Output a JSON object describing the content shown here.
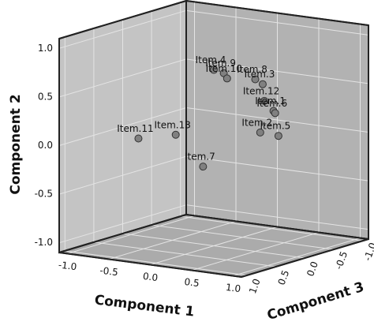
{
  "chart_data": {
    "type": "scatter3d",
    "xlabel": "Component 1",
    "ylabel": "Component 2",
    "zlabel": "Component 3",
    "xlim": [
      -1.1,
      1.1
    ],
    "ylim": [
      -1.1,
      1.1
    ],
    "zlim": [
      -1.1,
      1.1
    ],
    "xticks": [
      {
        "value": -1,
        "label": "-1.0"
      },
      {
        "value": -0.5,
        "label": "-0.5"
      },
      {
        "value": 0,
        "label": "0.0"
      },
      {
        "value": 0.5,
        "label": "0.5"
      },
      {
        "value": 1,
        "label": "1.0"
      }
    ],
    "yticks": [
      {
        "value": -1,
        "label": "-1.0"
      },
      {
        "value": -0.5,
        "label": "-0.5"
      },
      {
        "value": 0,
        "label": "0.0"
      },
      {
        "value": 0.5,
        "label": "0.5"
      },
      {
        "value": 1,
        "label": "1.0"
      }
    ],
    "zticks": [
      {
        "value": -1,
        "label": "-1.0"
      },
      {
        "value": -0.5,
        "label": "-0.5"
      },
      {
        "value": 0,
        "label": "0.0"
      },
      {
        "value": 0.5,
        "label": "0.5"
      },
      {
        "value": 1,
        "label": "1.0"
      }
    ],
    "grid": true,
    "color": "#808080",
    "labels": [
      "Item.4",
      "Item.9",
      "Item.10",
      "Item.8",
      "Item.3",
      "Item.12",
      "Item.1",
      "Item.6",
      "Item.2",
      "Item.5",
      "Item.11",
      "Item.13",
      "Item.7"
    ],
    "x": [
      0.0,
      0.12,
      0.16,
      0.5,
      0.59,
      0.61,
      0.72,
      0.74,
      0.56,
      0.78,
      -0.91,
      -0.46,
      -0.13
    ],
    "y": [
      0.71,
      0.69,
      0.64,
      0.67,
      0.63,
      0.46,
      0.37,
      0.35,
      0.13,
      0.12,
      -0.1,
      -0.01,
      -0.3
    ],
    "z": [
      0,
      0,
      0,
      0,
      0,
      0,
      0,
      0,
      0,
      0,
      0,
      0,
      0
    ]
  }
}
